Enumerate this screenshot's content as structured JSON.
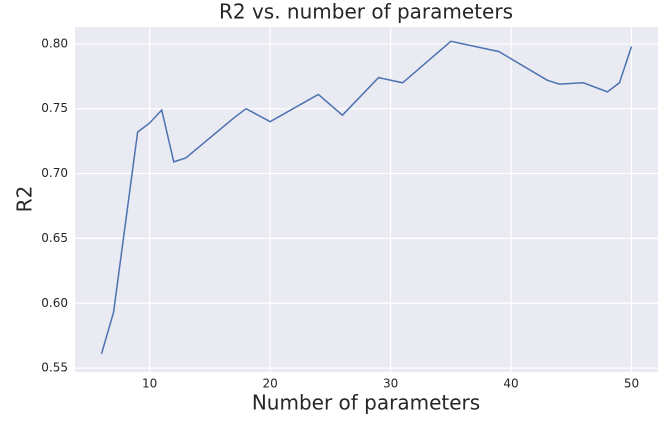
{
  "chart_data": {
    "type": "line",
    "title": "R2 vs. number of parameters",
    "x_label": "Number of parameters",
    "y_label": "R2",
    "x": [
      6,
      7,
      9,
      10,
      11,
      12,
      13,
      17,
      18,
      20,
      24,
      26,
      29,
      31,
      35,
      39,
      43,
      44,
      46,
      48,
      49,
      50
    ],
    "series": [
      {
        "name": "R2",
        "color": "#4c72b0",
        "values": [
          0.561,
          0.593,
          0.732,
          0.739,
          0.749,
          0.709,
          0.712,
          0.743,
          0.75,
          0.74,
          0.761,
          0.745,
          0.774,
          0.77,
          0.802,
          0.794,
          0.772,
          0.769,
          0.77,
          0.763,
          0.77,
          0.798
        ]
      }
    ],
    "xlim": [
      3.8,
      52.2
    ],
    "xticks": [
      10,
      20,
      30,
      40,
      50
    ],
    "ylim": [
      0.547,
      0.813
    ],
    "yticks": [
      0.55,
      {
        "value": 0.6,
        "label": "0.60"
      },
      0.65,
      {
        "value": 0.7,
        "label": "0.70"
      },
      0.75,
      {
        "value": 0.8,
        "label": "0.80"
      }
    ],
    "grid": true
  }
}
